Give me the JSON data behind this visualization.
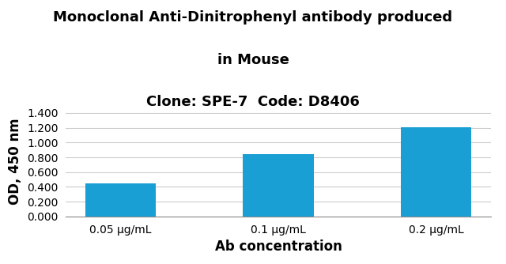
{
  "title_line1": "Monoclonal Anti-Dinitrophenyl antibody produced",
  "title_line2": "in Mouse",
  "title_line3": "Clone: SPE-7  Code: D8406",
  "categories": [
    "0.05 µg/mL",
    "0.1 µg/mL",
    "0.2 µg/mL"
  ],
  "values": [
    0.45,
    0.845,
    1.205
  ],
  "bar_color": "#1a9fd4",
  "xlabel": "Ab concentration",
  "ylabel": "OD, 450 nm",
  "ylim": [
    0,
    1.5
  ],
  "yticks": [
    0.0,
    0.2,
    0.4,
    0.6,
    0.8,
    1.0,
    1.2,
    1.4
  ],
  "background_color": "#ffffff",
  "title_fontsize": 13,
  "axis_label_fontsize": 12,
  "tick_fontsize": 10,
  "bar_width": 0.45,
  "grid_color": "#cccccc",
  "title_line1_bold": true,
  "title_line2_bold": true,
  "title_line3_bold": true
}
